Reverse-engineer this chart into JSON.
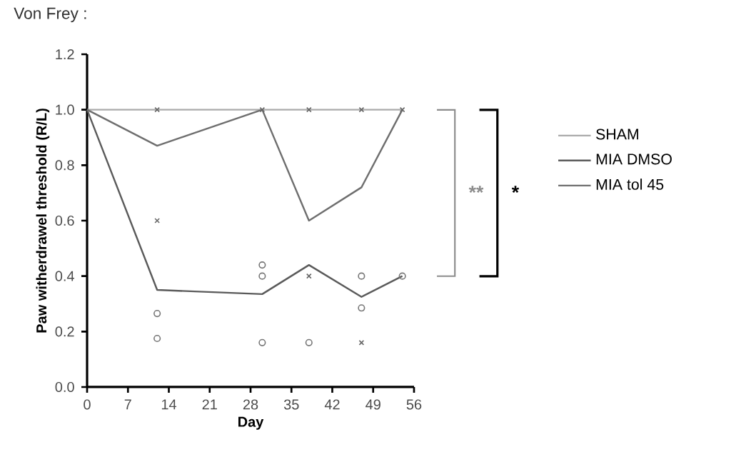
{
  "chart_data": {
    "type": "line",
    "title": "Von Frey :",
    "xlabel": "Day",
    "ylabel": "Paw witherdrawel threshold (R/L)",
    "xlim": [
      0,
      56
    ],
    "ylim": [
      0,
      1.2
    ],
    "xticks": [
      0,
      7,
      14,
      21,
      28,
      35,
      42,
      49,
      56
    ],
    "yticks": [
      {
        "value": 0,
        "label": "0.0"
      },
      {
        "value": 0.2,
        "label": "0.2"
      },
      {
        "value": 0.4,
        "label": "0.4"
      },
      {
        "value": 0.6,
        "label": "0.6"
      },
      {
        "value": 0.8,
        "label": "0.8"
      },
      {
        "value": 1,
        "label": "1.0"
      },
      {
        "value": 1.2,
        "label": "1.2"
      }
    ],
    "legend": "right",
    "grid": false,
    "line_style": "solid",
    "annotations": [
      "**",
      "*"
    ],
    "series": [
      {
        "name": "SHAM",
        "color": "#aaaaaa",
        "marker": "none",
        "x": [
          0,
          12,
          30,
          38,
          47,
          54
        ],
        "values": [
          1,
          1,
          1,
          1,
          1,
          1
        ]
      },
      {
        "name": "MIA DMSO",
        "color": "#5a5a5a",
        "marker": "none",
        "x": [
          0,
          12,
          30,
          38,
          47,
          54
        ],
        "values": [
          1,
          0.35,
          0.335,
          0.44,
          0.325,
          0.4
        ]
      },
      {
        "name": "MIA tol 45",
        "color": "#6e6e6e",
        "marker": "none",
        "x": [
          0,
          12,
          30,
          38,
          47,
          54
        ],
        "values": [
          1,
          0.87,
          1,
          0.6,
          0.72,
          1
        ]
      },
      {
        "type": "scatter",
        "color": "#777777",
        "marker": "circle",
        "x": [
          12,
          12,
          30,
          30,
          30,
          38,
          47,
          47,
          54
        ],
        "values": [
          0.265,
          0.175,
          0.44,
          0.4,
          0.16,
          0.16,
          0.4,
          0.285,
          0.4
        ]
      },
      {
        "type": "scatter",
        "color": "#666666",
        "marker": "cross",
        "x": [
          12,
          12,
          30,
          38,
          38,
          47,
          47,
          54
        ],
        "values": [
          1,
          0.6,
          1,
          1,
          0.4,
          1,
          0.16,
          1
        ]
      }
    ]
  }
}
